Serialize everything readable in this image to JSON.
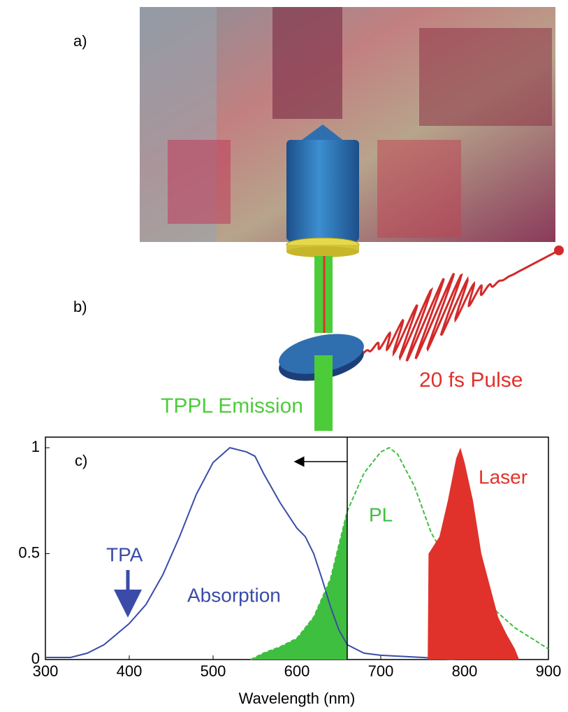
{
  "panel_labels": {
    "a": "a)",
    "b": "b)"
  },
  "setup": {
    "emission": "TPPL Emission",
    "pulse": "20 fs Pulse"
  },
  "chart_data": {
    "type": "line",
    "panel_label": "c)",
    "x_label": "Wavelength (nm)",
    "annotation": "TPA",
    "xlim": [
      300,
      900
    ],
    "ylim": [
      0,
      1.05
    ],
    "xticks": [
      300,
      400,
      500,
      600,
      700,
      800,
      900
    ],
    "yticks": [
      0,
      0.5,
      1
    ],
    "vline": 660,
    "series": [
      {
        "name": "Absorption",
        "color": "#3a4ca8",
        "style": "solid",
        "x": [
          300,
          330,
          350,
          370,
          400,
          420,
          440,
          460,
          480,
          500,
          520,
          540,
          550,
          560,
          580,
          600,
          610,
          620,
          630,
          640,
          650,
          660,
          680,
          700,
          750,
          790
        ],
        "values": [
          0.01,
          0.01,
          0.03,
          0.07,
          0.17,
          0.26,
          0.4,
          0.58,
          0.78,
          0.93,
          1.0,
          0.98,
          0.96,
          0.88,
          0.74,
          0.62,
          0.58,
          0.5,
          0.38,
          0.25,
          0.14,
          0.07,
          0.03,
          0.02,
          0.01,
          0.0
        ]
      },
      {
        "name": "PL",
        "color": "#3fbf3f",
        "style": "dashed",
        "x": [
          545,
          560,
          580,
          600,
          620,
          640,
          660,
          680,
          700,
          710,
          720,
          740,
          760,
          780,
          800,
          820,
          840,
          860,
          880,
          900
        ],
        "values": [
          0.0,
          0.03,
          0.06,
          0.1,
          0.2,
          0.38,
          0.7,
          0.88,
          0.98,
          1.0,
          0.97,
          0.82,
          0.6,
          0.46,
          0.38,
          0.3,
          0.22,
          0.15,
          0.1,
          0.05
        ]
      },
      {
        "name": "Laser",
        "color": "#e0322a",
        "style": "area",
        "x": [
          756,
          757,
          770,
          780,
          790,
          795,
          800,
          810,
          820,
          830,
          840,
          850,
          860,
          865
        ],
        "values": [
          0.0,
          0.5,
          0.58,
          0.75,
          0.95,
          1.0,
          0.93,
          0.75,
          0.5,
          0.35,
          0.2,
          0.12,
          0.05,
          0.0
        ]
      }
    ]
  }
}
